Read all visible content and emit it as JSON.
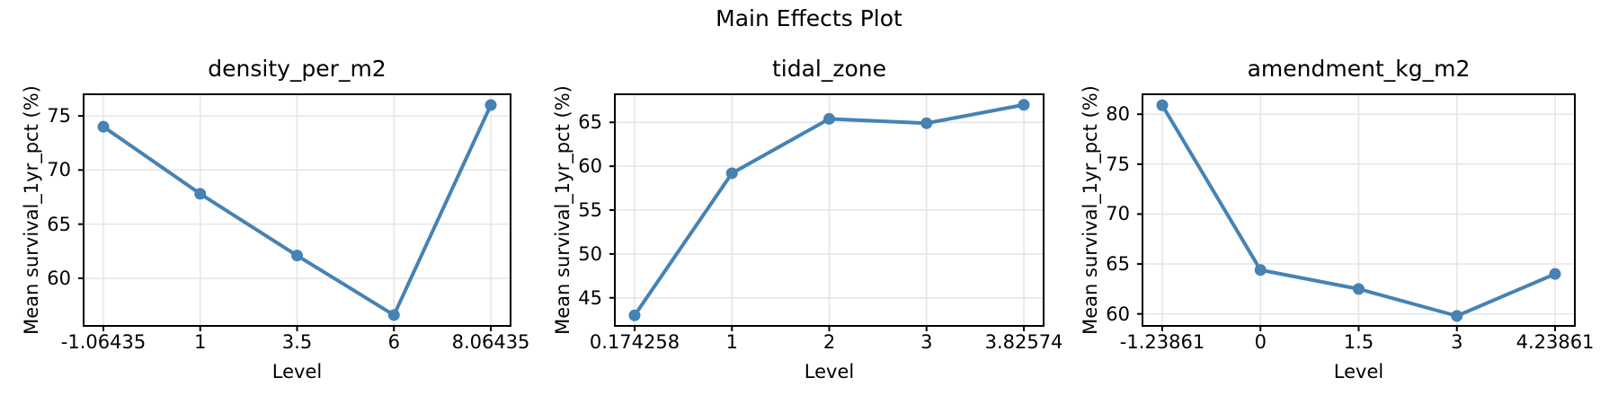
{
  "suptitle": "Main Effects Plot",
  "style": {
    "line_color": "#4682B4",
    "grid_color": "#e5e5e5",
    "spine_color": "#000000",
    "background": "#ffffff"
  },
  "chart_data": [
    {
      "type": "line",
      "title": "density_per_m2",
      "xlabel": "Level",
      "ylabel": "Mean survival_1yr_pct (%)",
      "categories": [
        "-1.06435",
        "1",
        "3.5",
        "6",
        "8.06435"
      ],
      "values": [
        74.0,
        67.8,
        62.1,
        56.6,
        76.0
      ],
      "yticks": [
        60,
        65,
        70,
        75
      ],
      "ylim": [
        55.6,
        77.0
      ],
      "grid": true,
      "legend": false
    },
    {
      "type": "line",
      "title": "tidal_zone",
      "xlabel": "Level",
      "ylabel": "Mean survival_1yr_pct (%)",
      "categories": [
        "0.174258",
        "1",
        "2",
        "3",
        "3.82574"
      ],
      "values": [
        43.0,
        59.2,
        65.4,
        64.9,
        67.0
      ],
      "yticks": [
        45,
        50,
        55,
        60,
        65
      ],
      "ylim": [
        41.8,
        68.2
      ],
      "grid": true,
      "legend": false
    },
    {
      "type": "line",
      "title": "amendment_kg_m2",
      "xlabel": "Level",
      "ylabel": "Mean survival_1yr_pct (%)",
      "categories": [
        "-1.23861",
        "0",
        "1.5",
        "3",
        "4.23861"
      ],
      "values": [
        80.9,
        64.4,
        62.5,
        59.8,
        64.0
      ],
      "yticks": [
        60,
        65,
        70,
        75,
        80
      ],
      "ylim": [
        58.8,
        82.0
      ],
      "grid": true,
      "legend": false
    }
  ]
}
